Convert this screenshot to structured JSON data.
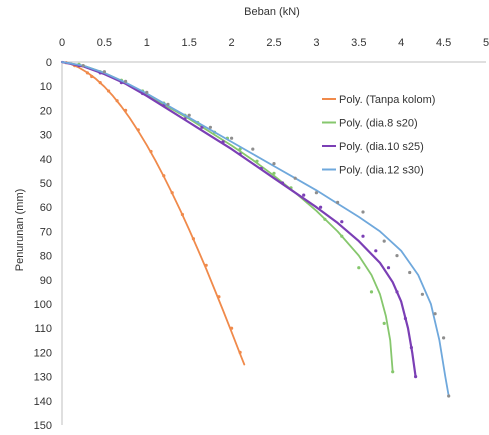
{
  "chart_data": {
    "type": "scatter",
    "xlabel": "Beban (kN)",
    "ylabel": "Penurunan (mm)",
    "xlim": [
      0,
      5
    ],
    "ylim": [
      0,
      150
    ],
    "x_ticks": [
      "0",
      "0.5",
      "1",
      "1.5",
      "2",
      "2.5",
      "3",
      "3.5",
      "4",
      "4.5",
      "5"
    ],
    "y_ticks": [
      "0",
      "10",
      "20",
      "30",
      "40",
      "50",
      "60",
      "70",
      "80",
      "90",
      "100",
      "110",
      "120",
      "130",
      "140",
      "150"
    ],
    "x_axis_position": "top",
    "y_axis_inverted": true,
    "grid": false,
    "legend_position": "right",
    "series": [
      {
        "name": "Poly. (Tanpa kolom)",
        "color": "#F08A4B",
        "trend": [
          [
            0,
            0
          ],
          [
            0.1,
            0.8
          ],
          [
            0.2,
            2.3
          ],
          [
            0.3,
            4.4
          ],
          [
            0.4,
            7.0
          ],
          [
            0.5,
            10.2
          ],
          [
            0.6,
            14.0
          ],
          [
            0.7,
            18.4
          ],
          [
            0.8,
            23.2
          ],
          [
            0.9,
            28.6
          ],
          [
            1.0,
            34.4
          ],
          [
            1.1,
            40.6
          ],
          [
            1.2,
            47.3
          ],
          [
            1.3,
            54.3
          ],
          [
            1.4,
            61.6
          ],
          [
            1.5,
            69.3
          ],
          [
            1.6,
            77.3
          ],
          [
            1.7,
            85.5
          ],
          [
            1.8,
            94.0
          ],
          [
            1.9,
            102.7
          ],
          [
            2.0,
            111.6
          ],
          [
            2.1,
            120.6
          ],
          [
            2.15,
            125.0
          ]
        ],
        "points": [
          [
            0.05,
            0.3
          ],
          [
            0.15,
            1.5
          ],
          [
            0.3,
            4.5
          ],
          [
            0.35,
            6
          ],
          [
            0.45,
            8.5
          ],
          [
            0.55,
            12
          ],
          [
            0.65,
            16
          ],
          [
            0.75,
            20
          ],
          [
            0.9,
            28
          ],
          [
            1.05,
            37
          ],
          [
            1.2,
            47
          ],
          [
            1.3,
            54
          ],
          [
            1.42,
            63
          ],
          [
            1.55,
            73
          ],
          [
            1.7,
            84
          ],
          [
            1.85,
            97
          ],
          [
            2.0,
            110
          ],
          [
            2.1,
            120
          ]
        ]
      },
      {
        "name": "Poly. (dia.8 s20)",
        "color": "#86C76D",
        "trend": [
          [
            0,
            0
          ],
          [
            0.25,
            1.5
          ],
          [
            0.5,
            4.5
          ],
          [
            0.75,
            8.5
          ],
          [
            1.0,
            13.5
          ],
          [
            1.25,
            18.5
          ],
          [
            1.5,
            23.5
          ],
          [
            1.75,
            29.0
          ],
          [
            2.0,
            34.5
          ],
          [
            2.25,
            40.5
          ],
          [
            2.5,
            47.0
          ],
          [
            2.75,
            54.0
          ],
          [
            3.0,
            61.5
          ],
          [
            3.25,
            70.0
          ],
          [
            3.5,
            80.0
          ],
          [
            3.65,
            88.0
          ],
          [
            3.75,
            96.0
          ],
          [
            3.82,
            105.0
          ],
          [
            3.87,
            115.0
          ],
          [
            3.9,
            128.0
          ]
        ],
        "points": [
          [
            0.2,
            1
          ],
          [
            0.45,
            4
          ],
          [
            0.7,
            7.5
          ],
          [
            0.95,
            12
          ],
          [
            1.2,
            17
          ],
          [
            1.45,
            22
          ],
          [
            1.6,
            25
          ],
          [
            1.8,
            29
          ],
          [
            1.95,
            31.5
          ],
          [
            2.1,
            36
          ],
          [
            2.3,
            41
          ],
          [
            2.5,
            46
          ],
          [
            2.7,
            52
          ],
          [
            2.9,
            58
          ],
          [
            3.1,
            65
          ],
          [
            3.3,
            72
          ],
          [
            3.5,
            85
          ],
          [
            3.65,
            95
          ],
          [
            3.8,
            108
          ],
          [
            3.9,
            128
          ]
        ]
      },
      {
        "name": "Poly. (dia.10 s25)",
        "color": "#7B3FB5",
        "trend": [
          [
            0,
            0
          ],
          [
            0.25,
            1.8
          ],
          [
            0.5,
            5.0
          ],
          [
            0.75,
            9.0
          ],
          [
            1.0,
            14.0
          ],
          [
            1.25,
            19.5
          ],
          [
            1.5,
            25.0
          ],
          [
            1.75,
            30.5
          ],
          [
            2.0,
            36.0
          ],
          [
            2.25,
            42.0
          ],
          [
            2.5,
            48.0
          ],
          [
            2.75,
            54.0
          ],
          [
            3.0,
            60.0
          ],
          [
            3.25,
            66.5
          ],
          [
            3.5,
            74.0
          ],
          [
            3.75,
            83.0
          ],
          [
            3.9,
            91.0
          ],
          [
            4.0,
            99.0
          ],
          [
            4.08,
            110.0
          ],
          [
            4.13,
            120.0
          ],
          [
            4.17,
            130.0
          ]
        ],
        "points": [
          [
            0.2,
            1.5
          ],
          [
            0.45,
            4.5
          ],
          [
            0.7,
            8.5
          ],
          [
            0.95,
            13
          ],
          [
            1.2,
            18
          ],
          [
            1.45,
            23.5
          ],
          [
            1.65,
            27
          ],
          [
            1.9,
            33
          ],
          [
            2.1,
            38
          ],
          [
            2.35,
            44
          ],
          [
            2.6,
            50
          ],
          [
            2.85,
            55
          ],
          [
            3.05,
            60
          ],
          [
            3.3,
            66
          ],
          [
            3.55,
            72
          ],
          [
            3.7,
            78
          ],
          [
            3.85,
            85
          ],
          [
            3.95,
            95
          ],
          [
            4.05,
            106
          ],
          [
            4.12,
            118
          ],
          [
            4.17,
            130
          ]
        ]
      },
      {
        "name": "Poly. (dia.12 s30)",
        "color": "#6FA8DC",
        "trend": [
          [
            0,
            0
          ],
          [
            0.25,
            1.5
          ],
          [
            0.5,
            4.5
          ],
          [
            0.75,
            8.5
          ],
          [
            1.0,
            13.0
          ],
          [
            1.25,
            18.0
          ],
          [
            1.5,
            23.0
          ],
          [
            1.75,
            28.0
          ],
          [
            2.0,
            33.0
          ],
          [
            2.25,
            38.0
          ],
          [
            2.5,
            43.0
          ],
          [
            2.75,
            48.0
          ],
          [
            3.0,
            53.0
          ],
          [
            3.25,
            58.5
          ],
          [
            3.5,
            64.0
          ],
          [
            3.75,
            70.0
          ],
          [
            4.0,
            78.0
          ],
          [
            4.2,
            88.0
          ],
          [
            4.35,
            100.0
          ],
          [
            4.45,
            115.0
          ],
          [
            4.52,
            130.0
          ],
          [
            4.56,
            138.0
          ]
        ],
        "points": [
          [
            0.25,
            1.5
          ],
          [
            0.5,
            4
          ],
          [
            0.75,
            8
          ],
          [
            1.0,
            12.5
          ],
          [
            1.25,
            17.5
          ],
          [
            1.5,
            22
          ],
          [
            1.75,
            27
          ],
          [
            2.0,
            31.5
          ],
          [
            2.25,
            36
          ],
          [
            2.5,
            42
          ],
          [
            2.75,
            48
          ],
          [
            3.0,
            54
          ],
          [
            3.25,
            58
          ],
          [
            3.55,
            62
          ],
          [
            3.8,
            74
          ],
          [
            3.95,
            80
          ],
          [
            4.1,
            87
          ],
          [
            4.25,
            96
          ],
          [
            4.4,
            104
          ],
          [
            4.5,
            114
          ],
          [
            4.56,
            138
          ]
        ]
      }
    ]
  }
}
